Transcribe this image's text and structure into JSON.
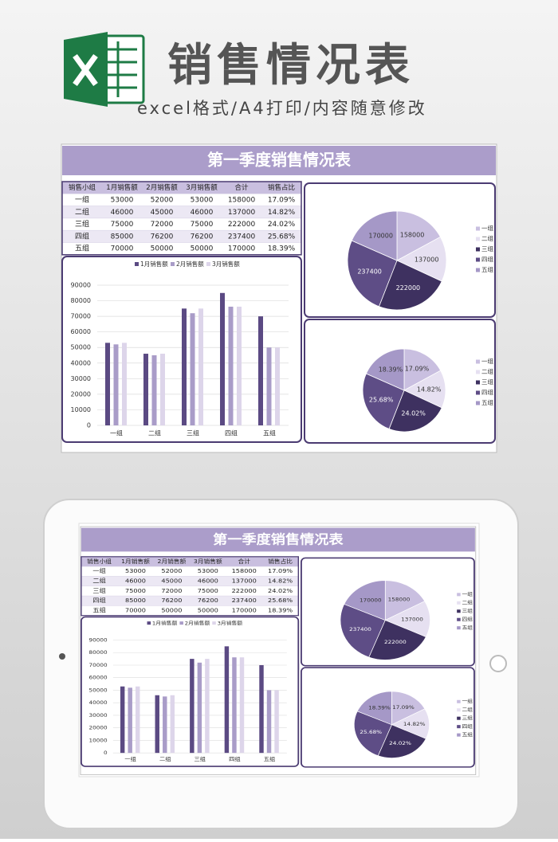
{
  "header": {
    "title": "销售情况表",
    "subtitle": "excel格式/A4打印/内容随意修改"
  },
  "sheet_title": "第一季度销售情况表",
  "table": {
    "columns": [
      "销售小组",
      "1月销售额",
      "2月销售额",
      "3月销售额",
      "合计",
      "销售占比"
    ],
    "rows": [
      [
        "一组",
        53000,
        52000,
        53000,
        158000,
        "17.09%"
      ],
      [
        "二组",
        46000,
        45000,
        46000,
        137000,
        "14.82%"
      ],
      [
        "三组",
        75000,
        72000,
        75000,
        222000,
        "24.02%"
      ],
      [
        "四组",
        85000,
        76200,
        76200,
        237400,
        "25.68%"
      ],
      [
        "五组",
        70000,
        50000,
        50000,
        170000,
        "18.39%"
      ]
    ]
  },
  "chart_data": [
    {
      "type": "bar",
      "categories": [
        "一组",
        "二组",
        "三组",
        "四组",
        "五组"
      ],
      "series": [
        {
          "name": "1月销售额",
          "color": "#5b4a83",
          "values": [
            53000,
            46000,
            75000,
            85000,
            70000
          ]
        },
        {
          "name": "2月销售额",
          "color": "#a99cc8",
          "values": [
            52000,
            45000,
            72000,
            76200,
            50000
          ]
        },
        {
          "name": "3月销售额",
          "color": "#ddd5ea",
          "values": [
            53000,
            46000,
            75000,
            76200,
            50000
          ]
        }
      ],
      "ylim": [
        0,
        90000
      ],
      "yticks": [
        0,
        10000,
        20000,
        30000,
        40000,
        50000,
        60000,
        70000,
        80000,
        90000
      ],
      "grid": true
    },
    {
      "type": "pie",
      "categories": [
        "一组",
        "二组",
        "三组",
        "四组",
        "五组"
      ],
      "values": [
        158000,
        137000,
        222000,
        237400,
        170000
      ],
      "colors": [
        "#c9bfe0",
        "#e6e0f1",
        "#3e3160",
        "#5e4d86",
        "#a598c7"
      ]
    },
    {
      "type": "pie",
      "categories": [
        "一组",
        "二组",
        "三组",
        "四组",
        "五组"
      ],
      "values": [
        17.09,
        14.82,
        24.02,
        25.68,
        18.39
      ],
      "value_labels": [
        "17.09%",
        "14.82%",
        "24.02%",
        "25.68%",
        "18.39%"
      ],
      "colors": [
        "#c9bfe0",
        "#e6e0f1",
        "#3e3160",
        "#5e4d86",
        "#a598c7"
      ]
    }
  ]
}
